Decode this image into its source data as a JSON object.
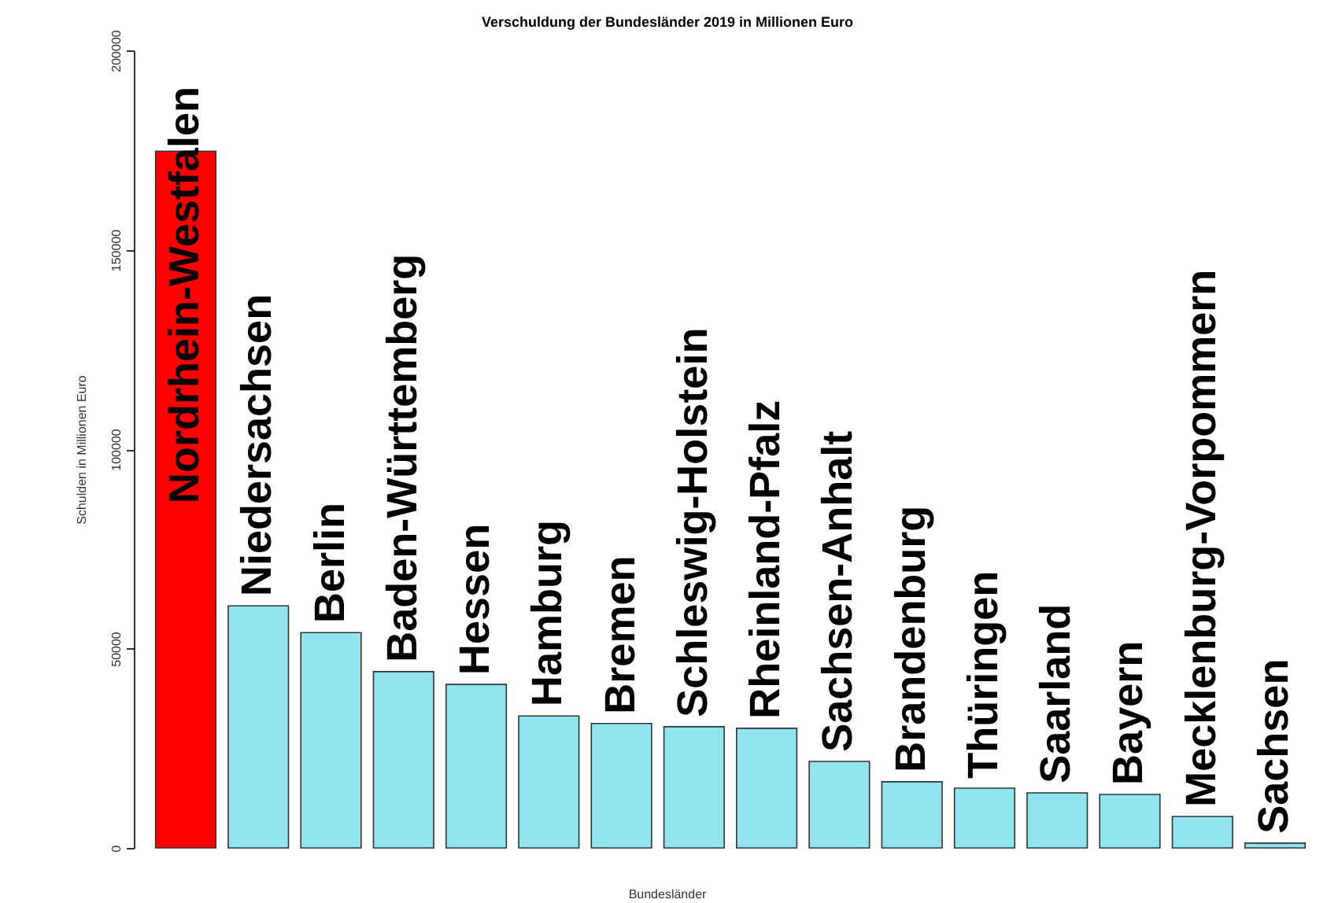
{
  "chart_data": {
    "type": "bar",
    "title": "Verschuldung der Bundesländer 2019 in Millionen Euro",
    "xlabel": "Bundesländer",
    "ylabel": "Schulden in Millionen Euro",
    "categories": [
      "Nordrhein-Westfalen",
      "Niedersachsen",
      "Berlin",
      "Baden-Württemberg",
      "Hessen",
      "Hamburg",
      "Bremen",
      "Schleswig-Holstein",
      "Rheinland-Pfalz",
      "Sachsen-Anhalt",
      "Brandenburg",
      "Thüringen",
      "Saarland",
      "Bayern",
      "Mecklenburg-Vorpommern",
      "Sachsen"
    ],
    "values": [
      174700,
      60700,
      54000,
      44200,
      41000,
      33100,
      31200,
      30400,
      30000,
      21700,
      16600,
      15000,
      13800,
      13400,
      7900,
      1200
    ],
    "colors": [
      "#ff0000",
      "#90e4ee",
      "#90e4ee",
      "#90e4ee",
      "#90e4ee",
      "#90e4ee",
      "#90e4ee",
      "#90e4ee",
      "#90e4ee",
      "#90e4ee",
      "#90e4ee",
      "#90e4ee",
      "#90e4ee",
      "#90e4ee",
      "#90e4ee",
      "#90e4ee"
    ],
    "ylim": [
      0,
      200000
    ],
    "yticks": [
      0,
      50000,
      100000,
      150000,
      200000
    ],
    "grid": false
  }
}
